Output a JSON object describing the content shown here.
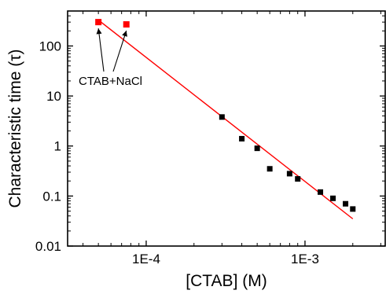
{
  "chart_data": {
    "type": "scatter",
    "title": "",
    "xlabel": "[CTAB] (M)",
    "ylabel": "Characteristic time (τ)",
    "x_scale": "log",
    "y_scale": "log",
    "xlim": [
      3.2e-05,
      0.0032
    ],
    "ylim": [
      0.01,
      500
    ],
    "x_ticks": [
      {
        "value": 0.0001,
        "label": "1E-4"
      },
      {
        "value": 0.001,
        "label": "1E-3"
      }
    ],
    "y_ticks": [
      {
        "value": 0.01,
        "label": "0.01"
      },
      {
        "value": 0.1,
        "label": "0.1"
      },
      {
        "value": 1,
        "label": "1"
      },
      {
        "value": 10,
        "label": "10"
      },
      {
        "value": 100,
        "label": "100"
      }
    ],
    "grid": false,
    "legend": "none",
    "series": [
      {
        "marker": "square",
        "color": "#ff0000",
        "points": [
          {
            "x": 5e-05,
            "y": 300
          },
          {
            "x": 7.5e-05,
            "y": 270
          }
        ]
      },
      {
        "marker": "square",
        "color": "#000000",
        "points": [
          {
            "x": 0.0003,
            "y": 3.8
          },
          {
            "x": 0.0004,
            "y": 1.4
          },
          {
            "x": 0.0005,
            "y": 0.9
          },
          {
            "x": 0.0006,
            "y": 0.35
          },
          {
            "x": 0.0008,
            "y": 0.28
          },
          {
            "x": 0.0009,
            "y": 0.22
          },
          {
            "x": 0.00125,
            "y": 0.12
          },
          {
            "x": 0.0015,
            "y": 0.09
          },
          {
            "x": 0.0018,
            "y": 0.07
          },
          {
            "x": 0.002,
            "y": 0.055
          }
        ]
      }
    ],
    "fit_line": {
      "type": "line",
      "color": "#ff0000",
      "points": [
        {
          "x": 5e-05,
          "y": 330
        },
        {
          "x": 0.002,
          "y": 0.035
        }
      ]
    },
    "annotations": [
      {
        "text": "CTAB+NaCl",
        "arrow_targets": [
          {
            "x": 5e-05,
            "y": 300
          },
          {
            "x": 7.5e-05,
            "y": 270
          }
        ]
      }
    ]
  }
}
